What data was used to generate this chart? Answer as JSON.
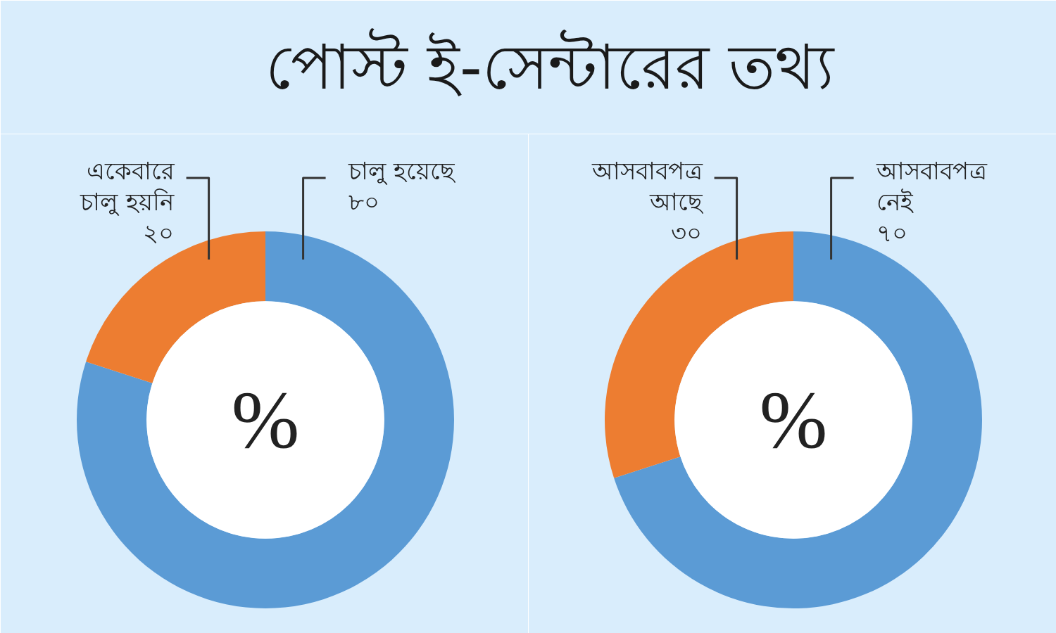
{
  "chart_data": [
    {
      "type": "donut",
      "title": "পোস্ট ই-সেন্টারের তথ্য",
      "categories": [
        "চালু হয়েছে",
        "একেবারে চালু হয়নি"
      ],
      "values": [
        80,
        20
      ],
      "value_labels": [
        "৮০",
        "২০"
      ],
      "colors": [
        "#5b9bd5",
        "#ed7d31"
      ],
      "annotations": [
        "%"
      ]
    },
    {
      "type": "donut",
      "categories": [
        "আসবাবপত্র নেই",
        "আসবাবপত্র আছে"
      ],
      "values": [
        70,
        30
      ],
      "value_labels": [
        "৭০",
        "৩০"
      ],
      "colors": [
        "#5b9bd5",
        "#ed7d31"
      ],
      "annotations": [
        "%"
      ]
    }
  ]
}
